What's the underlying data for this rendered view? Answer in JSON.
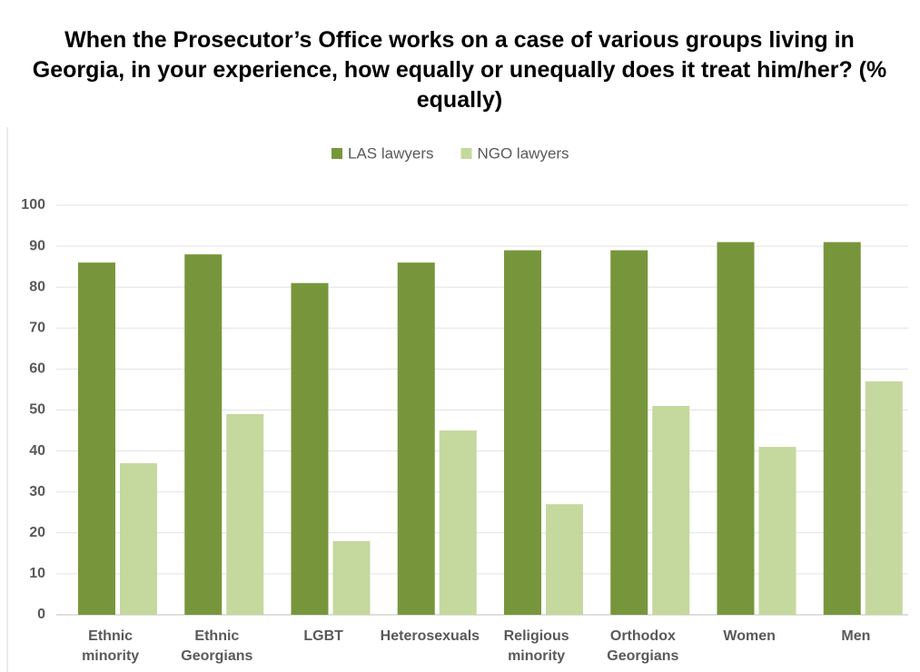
{
  "chart_data": {
    "type": "bar",
    "title": "When the Prosecutor’s Office works on a case of various groups living in Georgia, in your experience, how equally or unequally does it treat him/her? (% equally)",
    "categories": [
      "Ethnic minority",
      "Ethnic Georgians",
      "LGBT",
      "Heterosexuals",
      "Religious minority",
      "Orthodox Georgians",
      "Women",
      "Men"
    ],
    "series": [
      {
        "name": "LAS lawyers",
        "color": "#77963c",
        "values": [
          86,
          88,
          81,
          86,
          89,
          89,
          91,
          91
        ]
      },
      {
        "name": "NGO lawyers",
        "color": "#c5d89e",
        "values": [
          37,
          49,
          18,
          45,
          27,
          51,
          41,
          57
        ]
      }
    ],
    "ylim": [
      0,
      100
    ],
    "yticks": [
      0,
      10,
      20,
      30,
      40,
      50,
      60,
      70,
      80,
      90,
      100
    ],
    "grid": true,
    "legend": "top"
  }
}
